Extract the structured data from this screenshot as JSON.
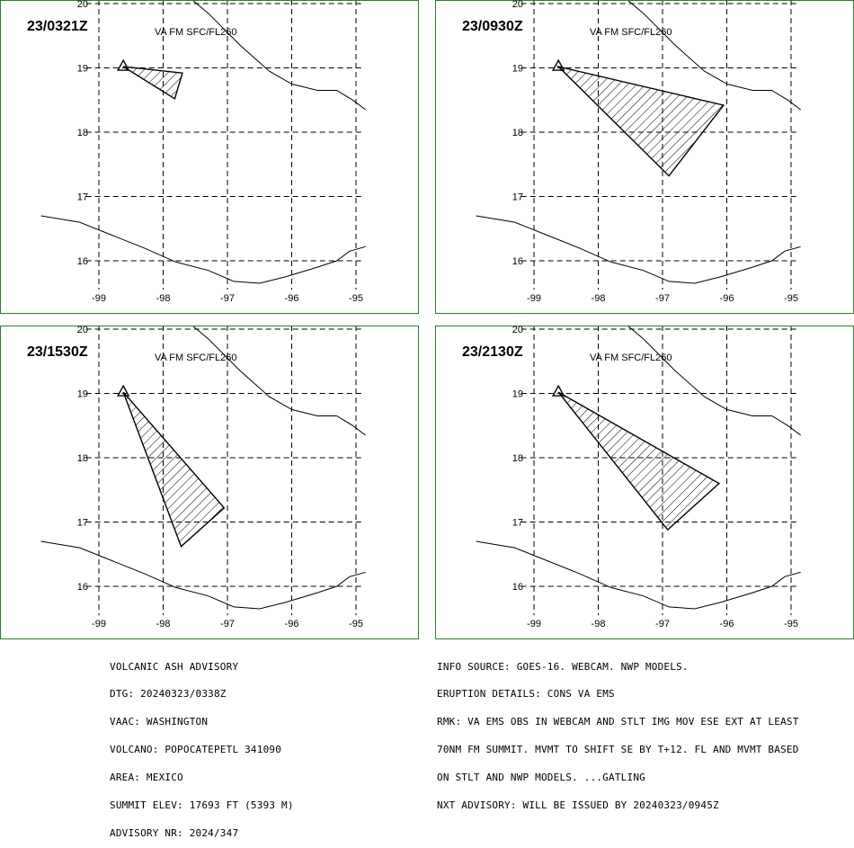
{
  "colors": {
    "frame": "#2e7d32",
    "lines": "#000000",
    "background": "#ffffff"
  },
  "map": {
    "lon_ticks": [
      -99,
      -98,
      -97,
      -96,
      -95
    ],
    "lat_ticks": [
      20,
      19,
      18,
      17,
      16
    ],
    "lon_range": [
      -99.2,
      -94.85
    ],
    "lat_range": [
      15.5,
      20.1
    ],
    "volcano": {
      "name": "POPOCATEPETL",
      "lat": 19.02,
      "lon": -98.62
    },
    "coast_north": [
      [
        -97.6,
        20.1
      ],
      [
        -97.3,
        19.85
      ],
      [
        -96.8,
        19.35
      ],
      [
        -96.35,
        18.95
      ],
      [
        -96.0,
        18.75
      ],
      [
        -95.6,
        18.65
      ],
      [
        -95.3,
        18.65
      ],
      [
        -95.05,
        18.5
      ],
      [
        -94.85,
        18.35
      ]
    ],
    "coast_south": [
      [
        -99.9,
        16.7
      ],
      [
        -99.3,
        16.6
      ],
      [
        -98.8,
        16.4
      ],
      [
        -98.3,
        16.2
      ],
      [
        -97.8,
        15.98
      ],
      [
        -97.3,
        15.85
      ],
      [
        -96.9,
        15.68
      ],
      [
        -96.5,
        15.65
      ],
      [
        -96.1,
        15.75
      ],
      [
        -95.6,
        15.9
      ],
      [
        -95.3,
        16.0
      ],
      [
        -95.1,
        16.15
      ],
      [
        -94.85,
        16.22
      ]
    ]
  },
  "panels": [
    {
      "time_label": "23/0321Z",
      "level_label": "VA FM SFC/FL260",
      "polygon": [
        [
          -98.62,
          19.02
        ],
        [
          -97.7,
          18.92
        ],
        [
          -97.82,
          18.52
        ],
        [
          -98.62,
          19.02
        ]
      ]
    },
    {
      "time_label": "23/0930Z",
      "level_label": "VA FM SFC/FL260",
      "polygon": [
        [
          -98.62,
          19.02
        ],
        [
          -96.05,
          18.42
        ],
        [
          -96.9,
          17.32
        ],
        [
          -98.62,
          19.02
        ]
      ]
    },
    {
      "time_label": "23/1530Z",
      "level_label": "VA FM SFC/FL260",
      "polygon": [
        [
          -98.62,
          19.02
        ],
        [
          -97.05,
          17.22
        ],
        [
          -97.72,
          16.62
        ],
        [
          -98.62,
          19.02
        ]
      ]
    },
    {
      "time_label": "23/2130Z",
      "level_label": "VA FM SFC/FL260",
      "polygon": [
        [
          -98.62,
          19.02
        ],
        [
          -96.12,
          17.6
        ],
        [
          -96.92,
          16.88
        ],
        [
          -98.62,
          19.02
        ]
      ]
    }
  ],
  "advisory_left": [
    "VOLCANIC ASH ADVISORY",
    "DTG: 20240323/0338Z",
    "VAAC: WASHINGTON",
    "VOLCANO: POPOCATEPETL 341090",
    "AREA: MEXICO",
    "SUMMIT ELEV: 17693 FT (5393 M)",
    "ADVISORY NR: 2024/347"
  ],
  "advisory_right": [
    "INFO SOURCE: GOES-16. WEBCAM. NWP MODELS.",
    "ERUPTION DETAILS: CONS VA EMS",
    "RMK: VA EMS OBS IN WEBCAM AND STLT IMG MOV ESE EXT AT LEAST",
    "70NM FM SUMMIT. MVMT TO SHIFT SE BY T+12. FL AND MVMT BASED",
    "ON STLT AND NWP MODELS. ...GATLING",
    "NXT ADVISORY: WILL BE ISSUED BY 20240323/0945Z"
  ]
}
